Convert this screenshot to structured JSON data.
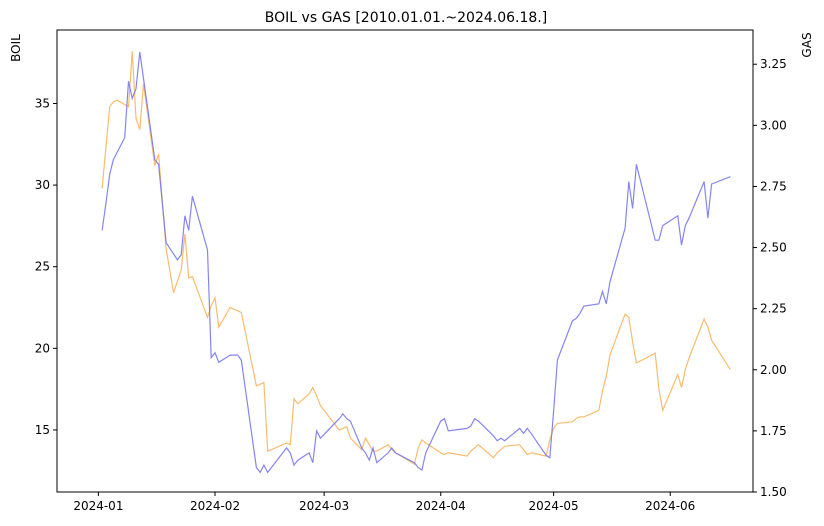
{
  "chart_data": {
    "type": "line",
    "title": "BOIL vs GAS [2010.01.01.~2024.06.18.]",
    "x_tick_labels": [
      "2024-01",
      "2024-02",
      "2024-03",
      "2024-04",
      "2024-05",
      "2024-06"
    ],
    "y_left": {
      "label": "BOIL",
      "ylim": [
        11.2,
        39.5
      ],
      "ticks": [
        15,
        20,
        25,
        30,
        35
      ],
      "color": "#ff8c00"
    },
    "y_right": {
      "label": "GAS",
      "ylim": [
        1.5,
        3.39
      ],
      "ticks": [
        "1.50",
        "1.75",
        "2.00",
        "2.25",
        "2.50",
        "2.75",
        "3.00",
        "3.25"
      ],
      "color": "#0000cd"
    },
    "series": [
      {
        "name": "BOIL",
        "axis": "left",
        "color": "#f7a030",
        "x": [
          "2024-01-02",
          "2024-01-04",
          "2024-01-05",
          "2024-01-06",
          "2024-01-09",
          "2024-01-10",
          "2024-01-11",
          "2024-01-12",
          "2024-01-13",
          "2024-01-16",
          "2024-01-17",
          "2024-01-19",
          "2024-01-21",
          "2024-01-23",
          "2024-01-24",
          "2024-01-25",
          "2024-01-26",
          "2024-01-30",
          "2024-01-31",
          "2024-02-01",
          "2024-02-02",
          "2024-02-05",
          "2024-02-06",
          "2024-02-07",
          "2024-02-08",
          "2024-02-12",
          "2024-02-13",
          "2024-02-14",
          "2024-02-15",
          "2024-02-20",
          "2024-02-21",
          "2024-02-22",
          "2024-02-23",
          "2024-02-26",
          "2024-02-27",
          "2024-02-28",
          "2024-02-29",
          "2024-03-05",
          "2024-03-06",
          "2024-03-07",
          "2024-03-08",
          "2024-03-11",
          "2024-03-12",
          "2024-03-13",
          "2024-03-14",
          "2024-03-15",
          "2024-03-18",
          "2024-03-19",
          "2024-03-20",
          "2024-03-25",
          "2024-03-26",
          "2024-03-27",
          "2024-03-28",
          "2024-04-01",
          "2024-04-02",
          "2024-04-03",
          "2024-04-08",
          "2024-04-09",
          "2024-04-10",
          "2024-04-11",
          "2024-04-15",
          "2024-04-16",
          "2024-04-17",
          "2024-04-18",
          "2024-04-22",
          "2024-04-23",
          "2024-04-24",
          "2024-04-25",
          "2024-04-29",
          "2024-04-30",
          "2024-05-01",
          "2024-05-02",
          "2024-05-06",
          "2024-05-07",
          "2024-05-08",
          "2024-05-09",
          "2024-05-13",
          "2024-05-14",
          "2024-05-15",
          "2024-05-16",
          "2024-05-20",
          "2024-05-21",
          "2024-05-22",
          "2024-05-23",
          "2024-05-28",
          "2024-05-29",
          "2024-05-30",
          "2024-06-03",
          "2024-06-04",
          "2024-06-05",
          "2024-06-06",
          "2024-06-10",
          "2024-06-11",
          "2024-06-12",
          "2024-06-17"
        ],
        "values": [
          29.8,
          34.8,
          35.1,
          35.2,
          34.8,
          38.2,
          34.1,
          33.4,
          36.2,
          31.2,
          31.9,
          26.1,
          23.4,
          24.8,
          27.0,
          24.3,
          24.4,
          21.9,
          22.6,
          23.1,
          21.3,
          22.5,
          22.4,
          22.3,
          22.2,
          17.7,
          17.8,
          17.9,
          13.7,
          14.2,
          14.1,
          16.9,
          16.6,
          17.2,
          17.6,
          17.1,
          16.5,
          15.0,
          15.1,
          15.2,
          14.5,
          13.8,
          14.5,
          14.1,
          13.7,
          13.7,
          14.1,
          13.8,
          13.6,
          12.9,
          13.9,
          14.4,
          14.2,
          13.6,
          13.5,
          13.6,
          13.4,
          13.7,
          13.9,
          14.1,
          13.3,
          13.6,
          13.8,
          14.0,
          14.1,
          13.8,
          13.5,
          13.6,
          13.4,
          14.4,
          15.1,
          15.4,
          15.5,
          15.7,
          15.8,
          15.8,
          16.2,
          17.4,
          18.3,
          19.6,
          22.1,
          21.9,
          20.4,
          19.1,
          19.7,
          17.5,
          16.2,
          18.4,
          17.6,
          18.7,
          19.4,
          21.8,
          21.3,
          20.5,
          18.7
        ]
      },
      {
        "name": "GAS",
        "axis": "right",
        "color": "#7070f0",
        "x": [
          "2024-01-02",
          "2024-01-03",
          "2024-01-04",
          "2024-01-05",
          "2024-01-08",
          "2024-01-09",
          "2024-01-10",
          "2024-01-11",
          "2024-01-12",
          "2024-01-16",
          "2024-01-17",
          "2024-01-19",
          "2024-01-22",
          "2024-01-23",
          "2024-01-24",
          "2024-01-25",
          "2024-01-26",
          "2024-01-30",
          "2024-01-31",
          "2024-02-01",
          "2024-02-02",
          "2024-02-05",
          "2024-02-06",
          "2024-02-07",
          "2024-02-08",
          "2024-02-12",
          "2024-02-13",
          "2024-02-14",
          "2024-02-15",
          "2024-02-20",
          "2024-02-21",
          "2024-02-22",
          "2024-02-23",
          "2024-02-26",
          "2024-02-27",
          "2024-02-28",
          "2024-02-29",
          "2024-03-05",
          "2024-03-06",
          "2024-03-07",
          "2024-03-08",
          "2024-03-11",
          "2024-03-12",
          "2024-03-13",
          "2024-03-14",
          "2024-03-15",
          "2024-03-18",
          "2024-03-19",
          "2024-03-20",
          "2024-03-25",
          "2024-03-26",
          "2024-03-27",
          "2024-03-28",
          "2024-04-01",
          "2024-04-02",
          "2024-04-03",
          "2024-04-08",
          "2024-04-09",
          "2024-04-10",
          "2024-04-11",
          "2024-04-15",
          "2024-04-16",
          "2024-04-17",
          "2024-04-18",
          "2024-04-22",
          "2024-04-23",
          "2024-04-24",
          "2024-04-25",
          "2024-04-29",
          "2024-04-30",
          "2024-05-01",
          "2024-05-02",
          "2024-05-06",
          "2024-05-07",
          "2024-05-08",
          "2024-05-09",
          "2024-05-13",
          "2024-05-14",
          "2024-05-15",
          "2024-05-16",
          "2024-05-20",
          "2024-05-21",
          "2024-05-22",
          "2024-05-23",
          "2024-05-28",
          "2024-05-29",
          "2024-05-30",
          "2024-06-03",
          "2024-06-04",
          "2024-06-05",
          "2024-06-06",
          "2024-06-10",
          "2024-06-11",
          "2024-06-12",
          "2024-06-17"
        ],
        "values": [
          2.57,
          2.68,
          2.8,
          2.86,
          2.95,
          3.18,
          3.11,
          3.15,
          3.3,
          2.86,
          2.84,
          2.52,
          2.45,
          2.47,
          2.63,
          2.57,
          2.71,
          2.49,
          2.05,
          2.07,
          2.03,
          2.06,
          2.06,
          2.06,
          2.04,
          1.6,
          1.58,
          1.61,
          1.58,
          1.68,
          1.66,
          1.61,
          1.63,
          1.66,
          1.62,
          1.75,
          1.72,
          1.8,
          1.82,
          1.8,
          1.79,
          1.68,
          1.66,
          1.63,
          1.68,
          1.62,
          1.66,
          1.68,
          1.66,
          1.62,
          1.6,
          1.59,
          1.66,
          1.79,
          1.8,
          1.75,
          1.76,
          1.77,
          1.8,
          1.79,
          1.73,
          1.71,
          1.72,
          1.71,
          1.76,
          1.74,
          1.76,
          1.74,
          1.65,
          1.64,
          1.83,
          2.04,
          2.2,
          2.21,
          2.23,
          2.26,
          2.27,
          2.32,
          2.27,
          2.36,
          2.58,
          2.77,
          2.66,
          2.84,
          2.53,
          2.53,
          2.59,
          2.63,
          2.51,
          2.59,
          2.62,
          2.77,
          2.62,
          2.76,
          2.79
        ]
      }
    ],
    "grid": false,
    "legend": "none"
  }
}
